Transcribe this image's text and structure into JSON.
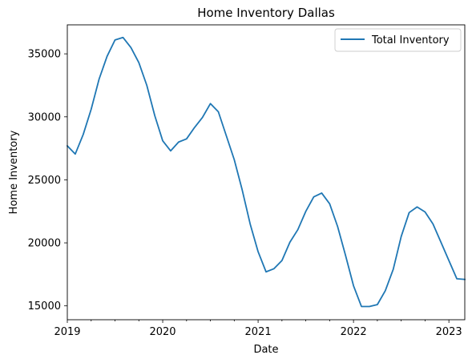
{
  "chart_data": {
    "type": "line",
    "title": "Home Inventory Dallas",
    "xlabel": "Date",
    "ylabel": "Home Inventory",
    "xlim": [
      "2019-01",
      "2023-03"
    ],
    "ylim": [
      13900,
      37300
    ],
    "x_ticks": [
      "2019",
      "2020",
      "2021",
      "2022",
      "2023"
    ],
    "y_ticks": [
      15000,
      20000,
      25000,
      30000,
      35000
    ],
    "grid": false,
    "legend": {
      "position": "top-right",
      "entries": [
        "Total Inventory"
      ]
    },
    "series": [
      {
        "name": "Total Inventory",
        "color": "#1f77b4",
        "x": [
          "2019-01",
          "2019-02",
          "2019-03",
          "2019-04",
          "2019-05",
          "2019-06",
          "2019-07",
          "2019-08",
          "2019-09",
          "2019-10",
          "2019-11",
          "2019-12",
          "2020-01",
          "2020-02",
          "2020-03",
          "2020-04",
          "2020-05",
          "2020-06",
          "2020-07",
          "2020-08",
          "2020-09",
          "2020-10",
          "2020-11",
          "2020-12",
          "2021-01",
          "2021-02",
          "2021-03",
          "2021-04",
          "2021-05",
          "2021-06",
          "2021-07",
          "2021-08",
          "2021-09",
          "2021-10",
          "2021-11",
          "2021-12",
          "2022-01",
          "2022-02",
          "2022-03",
          "2022-04",
          "2022-05",
          "2022-06",
          "2022-07",
          "2022-08",
          "2022-09",
          "2022-10",
          "2022-11",
          "2022-12",
          "2023-01",
          "2023-02",
          "2023-03"
        ],
        "values": [
          27700,
          27050,
          28600,
          30600,
          33000,
          34800,
          36100,
          36300,
          35500,
          34300,
          32500,
          30100,
          28100,
          27300,
          28000,
          28250,
          29150,
          29950,
          31050,
          30400,
          28500,
          26600,
          24200,
          21500,
          19300,
          17700,
          17950,
          18600,
          20050,
          21050,
          22500,
          23650,
          23950,
          23100,
          21300,
          19000,
          16600,
          14950,
          14950,
          15100,
          16200,
          17900,
          20500,
          22400,
          22850,
          22450,
          21500,
          20050,
          18600,
          17150,
          17100
        ]
      }
    ]
  }
}
